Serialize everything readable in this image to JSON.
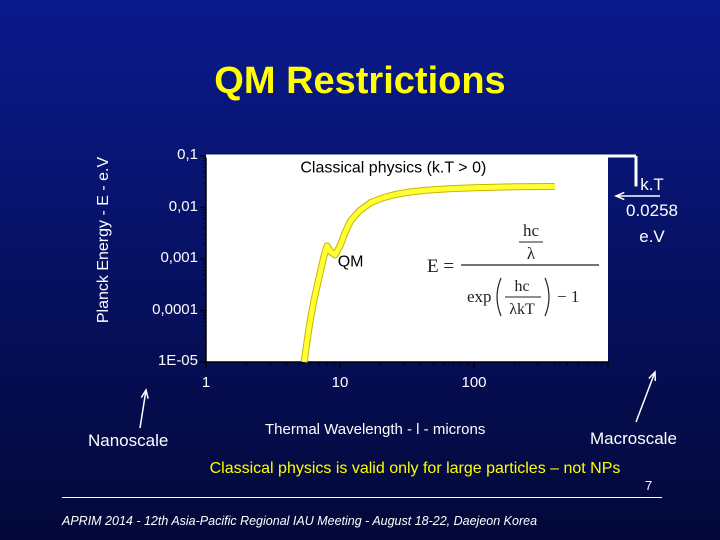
{
  "slide": {
    "title": "QM Restrictions",
    "kt_label_line1": "k.T",
    "kt_label_line2": "0.0258 e.V",
    "nanoscale_label": "Nanoscale",
    "macroscale_label": "Macroscale",
    "note": "Classical physics  is valid  only for large particles – not NPs",
    "page_number": "7",
    "footer": "APRIM 2014 - 12th Asia-Pacific Regional IAU Meeting - August 18-22, Daejeon Korea"
  },
  "colors": {
    "background": "#0a1a8c",
    "title": "#ffff00",
    "curve": "#ffff33",
    "plot_area": "#ffffff",
    "text": "#ffffff"
  },
  "chart_data": {
    "type": "line",
    "xlabel": "Thermal Wavelength - l - microns",
    "ylabel": "Planck Energy - E - e.V",
    "x_scale": "log",
    "y_scale": "log",
    "xlim": [
      1,
      1000
    ],
    "ylim": [
      1e-05,
      0.1
    ],
    "x_ticks": [
      "1",
      "10",
      "100"
    ],
    "y_ticks": [
      "0,1",
      "0,01",
      "0,001",
      "0,0001",
      "1E-05"
    ],
    "grid": false,
    "legend": "none",
    "series": [
      {
        "x": [
          5.4,
          5.9,
          6.4,
          7.0,
          7.6,
          8.0,
          8.5,
          9.2,
          10.0,
          11.0,
          12.0,
          14.0,
          17.0,
          21.0,
          26.0,
          33.0,
          45.0,
          65.0,
          100.0,
          200.0,
          400.0
        ],
        "y": [
          1e-05,
          5e-05,
          0.00016,
          0.00045,
          0.00115,
          0.0018,
          0.0014,
          0.0012,
          0.0018,
          0.0034,
          0.0055,
          0.0087,
          0.0125,
          0.0155,
          0.018,
          0.02,
          0.0218,
          0.0232,
          0.0242,
          0.0252,
          0.0256
        ]
      }
    ],
    "annotations": [
      {
        "text": "Classical physics (k.T > 0)",
        "x": 25,
        "y": 0.06
      },
      {
        "text": "QM",
        "x": 12,
        "y": 0.0009
      },
      {
        "text": "E = hc/λ / (exp(hc/λkT) − 1)",
        "x": 80,
        "y": 0.0008
      }
    ],
    "reference_line": {
      "y": 0.1
    }
  }
}
